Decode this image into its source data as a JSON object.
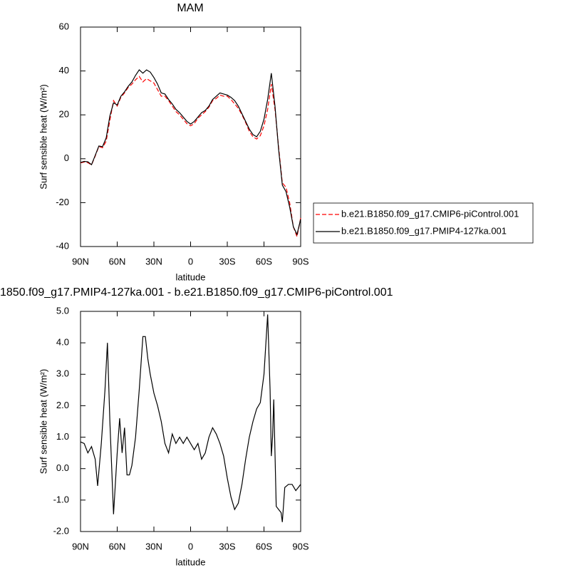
{
  "chart_data": [
    {
      "type": "line",
      "title": "MAM",
      "xlabel": "latitude",
      "ylabel": "Surf sensible heat (W/m²)",
      "xlim": [
        90,
        -90
      ],
      "xticks": [
        {
          "value": 90,
          "label": "90N"
        },
        {
          "value": 60,
          "label": "60N"
        },
        {
          "value": 30,
          "label": "30N"
        },
        0,
        {
          "value": -30,
          "label": "30S"
        },
        {
          "value": -60,
          "label": "60S"
        },
        {
          "value": -90,
          "label": "90S"
        }
      ],
      "ylim": [
        -40,
        60
      ],
      "yticks": [
        -40,
        -20,
        0,
        20,
        40,
        60
      ],
      "x": [
        90,
        87,
        84,
        81,
        78,
        75,
        72,
        69,
        66,
        63,
        60,
        57,
        54,
        51,
        48,
        45,
        42,
        39,
        36,
        33,
        30,
        27,
        24,
        21,
        18,
        15,
        12,
        9,
        6,
        3,
        0,
        -3,
        -6,
        -9,
        -12,
        -15,
        -18,
        -21,
        -24,
        -27,
        -30,
        -33,
        -36,
        -39,
        -42,
        -45,
        -48,
        -51,
        -54,
        -57,
        -60,
        -63,
        -66,
        -69,
        -72,
        -75,
        -78,
        -81,
        -84,
        -87,
        -90
      ],
      "legend": "right",
      "series": [
        {
          "name": "b.e21.B1850.f09_g17.CMIP6-piControl.001",
          "color": "#ff0000",
          "dashed": true,
          "values": [
            -1.9,
            -1.5,
            -1.8,
            -2.8,
            1.2,
            5.6,
            5.0,
            8.0,
            17.5,
            26.5,
            24.0,
            28.0,
            30.0,
            32.5,
            34.0,
            36.0,
            37.5,
            35.0,
            36.5,
            35.5,
            34.5,
            31.5,
            28.5,
            28.5,
            26.5,
            24.0,
            21.5,
            20.0,
            18.0,
            16.0,
            15.0,
            16.0,
            18.5,
            20.0,
            21.5,
            23.5,
            26.5,
            27.5,
            29.0,
            28.5,
            28.5,
            27.0,
            25.0,
            23.0,
            20.0,
            16.5,
            12.5,
            10.0,
            9.0,
            10.5,
            15.0,
            22.5,
            34.0,
            22.5,
            5.0,
            -11.0,
            -13.0,
            -20.0,
            -31.0,
            -35.5,
            -27.0
          ]
        },
        {
          "name": "b.e21.B1850.f09_g17.PMIP4-127ka.001",
          "color": "#000000",
          "dashed": false,
          "values": [
            -1.7,
            -1.2,
            -1.4,
            -2.7,
            1.5,
            5.8,
            5.5,
            9.5,
            19.5,
            25.5,
            24.5,
            28.5,
            30.5,
            33,
            35,
            38,
            40.5,
            39,
            40.5,
            39.5,
            37,
            34,
            30,
            29.5,
            27,
            25,
            22.5,
            21,
            19,
            17,
            15.8,
            17,
            19,
            21,
            22,
            24,
            27,
            28.5,
            30,
            29.5,
            29,
            28,
            26.5,
            24,
            20.5,
            17,
            13.5,
            11,
            10,
            12.5,
            18,
            27,
            39,
            24,
            4,
            -12,
            -15,
            -22,
            -31,
            -34.5,
            -27.5
          ]
        }
      ]
    },
    {
      "type": "line",
      "title": "1850.f09_g17.PMIP4-127ka.001 - b.e21.B1850.f09_g17.CMIP6-piControl.001",
      "xlabel": "latitude",
      "ylabel": "Surf sensible heat (W/m²)",
      "xlim": [
        90,
        -90
      ],
      "xticks": [
        {
          "value": 90,
          "label": "90N"
        },
        {
          "value": 60,
          "label": "60N"
        },
        {
          "value": 30,
          "label": "30N"
        },
        0,
        {
          "value": -30,
          "label": "30S"
        },
        {
          "value": -60,
          "label": "60S"
        },
        {
          "value": -90,
          "label": "90S"
        }
      ],
      "ylim": [
        -2,
        5
      ],
      "yticks": [
        {
          "value": -2,
          "label": "-2.0"
        },
        {
          "value": -1,
          "label": "-1.0"
        },
        {
          "value": 0,
          "label": "0.0"
        },
        {
          "value": 1,
          "label": "1.0"
        },
        {
          "value": 2,
          "label": "2.0"
        },
        {
          "value": 3,
          "label": "3.0"
        },
        {
          "value": 4,
          "label": "4.0"
        },
        {
          "value": 5,
          "label": "5.0"
        }
      ],
      "color": "#000000",
      "x": [
        90,
        87,
        84,
        81,
        78,
        76,
        73,
        70,
        68,
        66,
        63,
        60,
        58,
        56,
        54,
        52,
        50,
        48,
        45,
        42,
        39,
        37,
        35,
        33,
        30,
        27,
        24,
        21,
        18,
        15,
        12,
        9,
        6,
        3,
        0,
        -3,
        -6,
        -9,
        -12,
        -15,
        -18,
        -21,
        -24,
        -27,
        -30,
        -33,
        -36,
        -39,
        -42,
        -45,
        -48,
        -51,
        -54,
        -57,
        -60,
        -63,
        -65,
        -66,
        -67,
        -68,
        -70,
        -72,
        -74,
        -75,
        -77,
        -80,
        -83,
        -86,
        -88,
        -90
      ],
      "values": [
        0.85,
        0.8,
        0.5,
        0.7,
        0.3,
        -0.55,
        0.8,
        2.5,
        4.0,
        1.5,
        -1.45,
        0.5,
        1.6,
        0.5,
        1.3,
        -0.2,
        -0.2,
        0.1,
        1.0,
        2.5,
        4.2,
        4.2,
        3.5,
        3.0,
        2.4,
        2.0,
        1.5,
        0.8,
        0.5,
        1.1,
        0.8,
        1.0,
        0.8,
        1.0,
        0.8,
        0.6,
        0.8,
        0.3,
        0.5,
        1.0,
        1.3,
        1.1,
        0.8,
        0.4,
        -0.3,
        -0.9,
        -1.3,
        -1.1,
        -0.5,
        0.3,
        1.0,
        1.5,
        1.9,
        2.1,
        3.0,
        4.9,
        2.5,
        0.4,
        1.0,
        2.2,
        -1.2,
        -1.3,
        -1.4,
        -1.7,
        -0.6,
        -0.5,
        -0.5,
        -0.7,
        -0.6,
        -0.5
      ]
    }
  ]
}
